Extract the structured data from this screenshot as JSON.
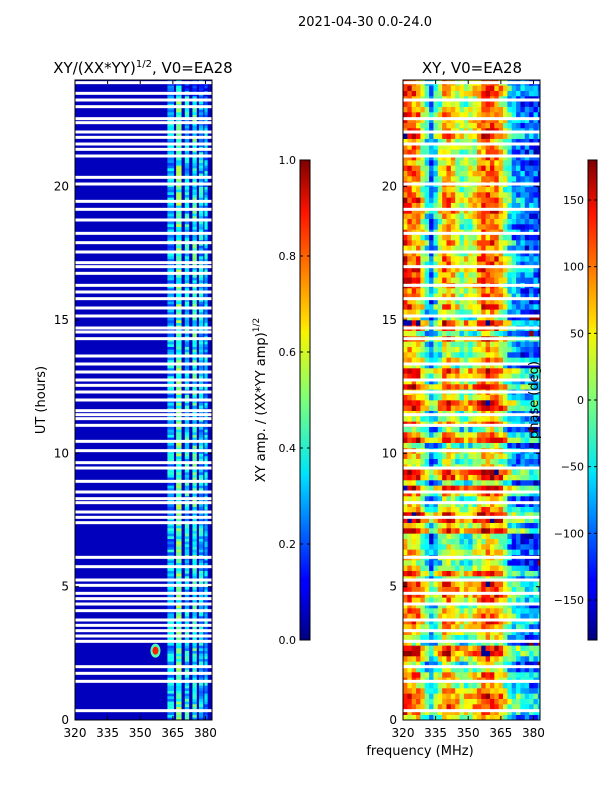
{
  "suptitle": "2021-04-30 0.0-24.0",
  "shared_xlabel": "frequency (MHz)",
  "chart_data": [
    {
      "type": "heatmap",
      "title_main": "XY/(XX*YY)",
      "title_sup": "1/2",
      "title_tail": ", V0=EA28",
      "ylabel": "UT (hours)",
      "xlim": [
        320,
        383
      ],
      "ylim": [
        0,
        24
      ],
      "xticks": [
        "320",
        "335",
        "350",
        "365",
        "380"
      ],
      "xtick_values": [
        320,
        335,
        350,
        365,
        380
      ],
      "yticks": [
        "0",
        "5",
        "10",
        "15",
        "20"
      ],
      "ytick_values": [
        0,
        5,
        10,
        15,
        20
      ],
      "colorbar": {
        "label_main": "XY amp. / (XX*YY amp)",
        "label_sup": "1/2",
        "range": [
          0.0,
          1.0
        ],
        "ticks": [
          "0.0",
          "0.2",
          "0.4",
          "0.6",
          "0.8",
          "1.0"
        ],
        "tick_values": [
          0.0,
          0.2,
          0.4,
          0.6,
          0.8,
          1.0
        ]
      },
      "flagged_hours": [
        0.35,
        1.45,
        1.75,
        2.0,
        2.95,
        3.15,
        3.35,
        3.55,
        3.75,
        4.1,
        4.35,
        4.55,
        4.75,
        5.05,
        5.25,
        5.75,
        6.1,
        7.4,
        7.6,
        7.8,
        8.15,
        8.3,
        8.55,
        8.95,
        9.45,
        9.65,
        10.1,
        10.45,
        11.05,
        11.3,
        11.45,
        11.6,
        12.0,
        12.3,
        12.55,
        12.75,
        13.05,
        13.35,
        13.65,
        14.3,
        14.55,
        14.7,
        15.15,
        15.45,
        15.8,
        16.05,
        16.3,
        16.75,
        17.0,
        17.15,
        17.55,
        17.9,
        18.25,
        18.75,
        19.15,
        19.45,
        20.1,
        20.35,
        21.15,
        21.4,
        21.6,
        21.85,
        22.05,
        22.4,
        22.55,
        23.0,
        23.25,
        23.5,
        23.9
      ],
      "rfi_bands_mhz": [
        [
          362.5,
          365.5
        ],
        [
          366.5,
          369.0
        ],
        [
          370.5,
          372.5
        ],
        [
          374.0,
          376.0
        ],
        [
          377.0,
          379.0
        ],
        [
          379.5,
          381.0
        ]
      ],
      "rfi_amplitude": [
        0.3,
        0.45,
        0.35,
        0.4,
        0.32,
        0.3
      ],
      "rfi_burst": {
        "freq_mhz": 357,
        "hour": 2.6,
        "amplitude": 0.85
      }
    },
    {
      "type": "heatmap",
      "title": "XY, V0=EA28",
      "ylabel": "",
      "xlim": [
        320,
        383
      ],
      "ylim": [
        0,
        24
      ],
      "xticks": [
        "320",
        "335",
        "350",
        "365",
        "380"
      ],
      "xtick_values": [
        320,
        335,
        350,
        365,
        380
      ],
      "yticks": [
        "0",
        "5",
        "10",
        "15",
        "20"
      ],
      "ytick_values": [
        0,
        5,
        10,
        15,
        20
      ],
      "colorbar": {
        "label": "phase (deg)",
        "range": [
          -180,
          180
        ],
        "ticks": [
          "150",
          "100",
          "50",
          "0",
          "−50",
          "−100",
          "−150"
        ],
        "tick_values": [
          150,
          100,
          50,
          0,
          -50,
          -100,
          -150
        ]
      },
      "flagged_hours": [
        0.35,
        1.45,
        2.0,
        2.95,
        3.35,
        3.75,
        4.35,
        4.75,
        5.25,
        6.1,
        7.6,
        8.15,
        8.55,
        9.45,
        10.1,
        11.05,
        11.45,
        12.3,
        12.75,
        13.35,
        14.3,
        14.7,
        15.15,
        15.8,
        16.3,
        17.0,
        17.55,
        18.25,
        19.15,
        20.1,
        21.15,
        21.6,
        22.05,
        22.55,
        23.25,
        23.9
      ],
      "phase_pattern": [
        {
          "freq_mhz": 320,
          "deg": 120
        },
        {
          "freq_mhz": 327,
          "deg": 90
        },
        {
          "freq_mhz": 333,
          "deg": -80
        },
        {
          "freq_mhz": 340,
          "deg": 100
        },
        {
          "freq_mhz": 347,
          "deg": 10
        },
        {
          "freq_mhz": 352,
          "deg": 30
        },
        {
          "freq_mhz": 358,
          "deg": 120
        },
        {
          "freq_mhz": 364,
          "deg": 90
        },
        {
          "freq_mhz": 370,
          "deg": -60
        },
        {
          "freq_mhz": 376,
          "deg": -90
        },
        {
          "freq_mhz": 383,
          "deg": -110
        }
      ]
    }
  ]
}
